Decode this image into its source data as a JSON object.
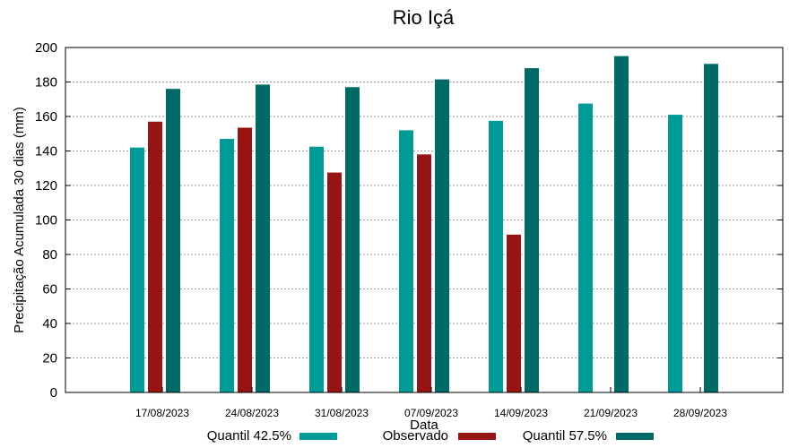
{
  "chart_data": {
    "type": "bar",
    "title": "Rio Içá",
    "xlabel": "Data",
    "ylabel": "Precipitação Acumulada 30 dias (mm)",
    "ylim": [
      0,
      200
    ],
    "yticks": [
      0,
      20,
      40,
      60,
      80,
      100,
      120,
      140,
      160,
      180,
      200
    ],
    "grid": true,
    "legend_position": "bottom",
    "categories": [
      "17/08/2023",
      "24/08/2023",
      "31/08/2023",
      "07/09/2023",
      "14/09/2023",
      "21/09/2023",
      "28/09/2023"
    ],
    "series": [
      {
        "name": "Quantil 42.5%",
        "color": "#009b96",
        "values": [
          142,
          147,
          142.5,
          152,
          157.5,
          167.5,
          161
        ]
      },
      {
        "name": "Observado",
        "color": "#961414",
        "values": [
          157,
          153.5,
          127.5,
          138,
          91.5,
          null,
          null
        ]
      },
      {
        "name": "Quantil 57.5%",
        "color": "#006a66",
        "values": [
          176,
          178.5,
          177,
          181.5,
          188,
          195,
          190.5
        ]
      }
    ]
  }
}
